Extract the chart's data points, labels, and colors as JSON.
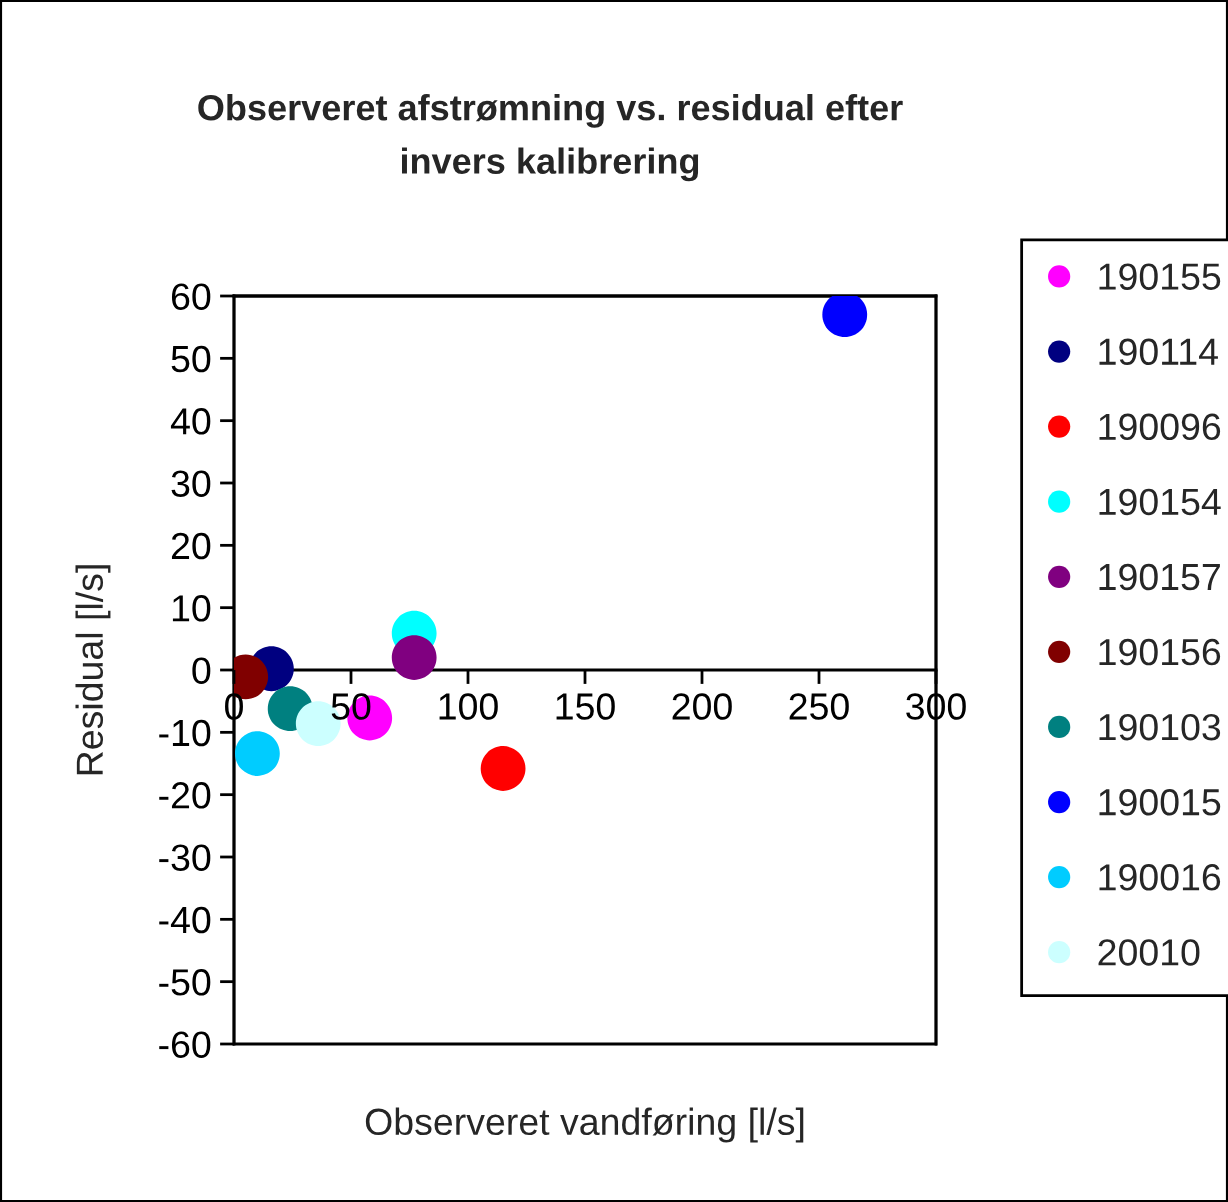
{
  "chart_data": {
    "type": "scatter",
    "title": "Observeret afstrømning vs. residual efter\ninvers kalibrering",
    "xlabel": "Observeret vandføring [l/s]",
    "ylabel": "Residual [l/s]",
    "xlim": [
      0,
      300
    ],
    "xticks": [
      0,
      50,
      100,
      150,
      200,
      250,
      300
    ],
    "ylim": [
      -60,
      60
    ],
    "yticks": [
      -60,
      -50,
      -40,
      -30,
      -20,
      -10,
      0,
      10,
      20,
      30,
      40,
      50,
      60
    ],
    "marker": "circle",
    "legend": "right",
    "series": [
      {
        "name": "190155",
        "color": "#ff00ff",
        "x": [
          58
        ],
        "values": [
          -7.7
        ]
      },
      {
        "name": "190114",
        "color": "#000080",
        "x": [
          16
        ],
        "values": [
          0.2
        ]
      },
      {
        "name": "190096",
        "color": "#ff0000",
        "x": [
          115
        ],
        "values": [
          -15.8
        ]
      },
      {
        "name": "190154",
        "color": "#00ffff",
        "x": [
          77
        ],
        "values": [
          5.9
        ]
      },
      {
        "name": "190157",
        "color": "#800080",
        "x": [
          77
        ],
        "values": [
          2
        ]
      },
      {
        "name": "190156",
        "color": "#800000",
        "x": [
          5
        ],
        "values": [
          -1.1
        ]
      },
      {
        "name": "190103",
        "color": "#008080",
        "x": [
          24
        ],
        "values": [
          -6.2
        ]
      },
      {
        "name": "190015",
        "color": "#0000ff",
        "x": [
          261
        ],
        "values": [
          57
        ]
      },
      {
        "name": "190016",
        "color": "#00ccff",
        "x": [
          10
        ],
        "values": [
          -13.4
        ]
      },
      {
        "name": "20010",
        "color": "#ccffff",
        "x": [
          36
        ],
        "values": [
          -8.6
        ]
      }
    ]
  }
}
